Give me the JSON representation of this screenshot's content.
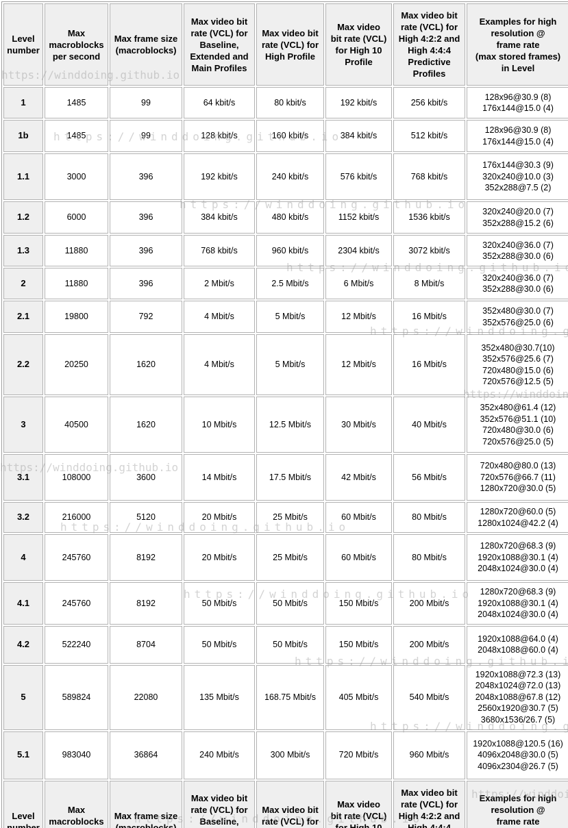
{
  "watermark": {
    "text": "https://winddoing.github.io",
    "color": "#d9d9d9"
  },
  "table": {
    "columns": [
      {
        "id": "level-number",
        "label": "Level\nnumber"
      },
      {
        "id": "max-macroblocks-per-second",
        "label": "Max\nmacroblocks\nper second"
      },
      {
        "id": "max-frame-size",
        "label": "Max frame size\n(macroblocks)"
      },
      {
        "id": "bitrate-baseline-extended-main",
        "label": "Max video bit\nrate (VCL) for\nBaseline,\nExtended and\nMain Profiles"
      },
      {
        "id": "bitrate-high",
        "label": "Max video bit\nrate (VCL) for\nHigh Profile"
      },
      {
        "id": "bitrate-high10",
        "label": "Max video\nbit rate (VCL)\nfor High 10\nProfile"
      },
      {
        "id": "bitrate-high422-444",
        "label": "Max video bit\nrate (VCL) for\nHigh 4:2:2 and\nHigh 4:4:4\nPredictive\nProfiles"
      },
      {
        "id": "examples",
        "label": "Examples for high\nresolution @\nframe rate\n(max stored frames)\nin Level"
      }
    ],
    "rows": [
      {
        "level": "1",
        "max_macroblocks_per_second": "1485",
        "max_frame_size": "99",
        "bitrate_baseline_extended_main": "64 kbit/s",
        "bitrate_high": "80 kbit/s",
        "bitrate_high10": "192 kbit/s",
        "bitrate_high422_444": "256 kbit/s",
        "examples": [
          "128x96@30.9 (8)",
          "176x144@15.0 (4)"
        ]
      },
      {
        "level": "1b",
        "max_macroblocks_per_second": "1485",
        "max_frame_size": "99",
        "bitrate_baseline_extended_main": "128 kbit/s",
        "bitrate_high": "160 kbit/s",
        "bitrate_high10": "384 kbit/s",
        "bitrate_high422_444": "512 kbit/s",
        "examples": [
          "128x96@30.9 (8)",
          "176x144@15.0 (4)"
        ]
      },
      {
        "level": "1.1",
        "max_macroblocks_per_second": "3000",
        "max_frame_size": "396",
        "bitrate_baseline_extended_main": "192 kbit/s",
        "bitrate_high": "240 kbit/s",
        "bitrate_high10": "576 kbit/s",
        "bitrate_high422_444": "768 kbit/s",
        "examples": [
          "176x144@30.3 (9)",
          "320x240@10.0 (3)",
          "352x288@7.5 (2)"
        ]
      },
      {
        "level": "1.2",
        "max_macroblocks_per_second": "6000",
        "max_frame_size": "396",
        "bitrate_baseline_extended_main": "384 kbit/s",
        "bitrate_high": "480 kbit/s",
        "bitrate_high10": "1152 kbit/s",
        "bitrate_high422_444": "1536 kbit/s",
        "examples": [
          "320x240@20.0 (7)",
          "352x288@15.2 (6)"
        ]
      },
      {
        "level": "1.3",
        "max_macroblocks_per_second": "11880",
        "max_frame_size": "396",
        "bitrate_baseline_extended_main": "768 kbit/s",
        "bitrate_high": "960 kbit/s",
        "bitrate_high10": "2304 kbit/s",
        "bitrate_high422_444": "3072 kbit/s",
        "examples": [
          "320x240@36.0 (7)",
          "352x288@30.0 (6)"
        ]
      },
      {
        "level": "2",
        "max_macroblocks_per_second": "11880",
        "max_frame_size": "396",
        "bitrate_baseline_extended_main": "2 Mbit/s",
        "bitrate_high": "2.5 Mbit/s",
        "bitrate_high10": "6 Mbit/s",
        "bitrate_high422_444": "8 Mbit/s",
        "examples": [
          "320x240@36.0 (7)",
          "352x288@30.0 (6)"
        ]
      },
      {
        "level": "2.1",
        "max_macroblocks_per_second": "19800",
        "max_frame_size": "792",
        "bitrate_baseline_extended_main": "4 Mbit/s",
        "bitrate_high": "5 Mbit/s",
        "bitrate_high10": "12 Mbit/s",
        "bitrate_high422_444": "16 Mbit/s",
        "examples": [
          "352x480@30.0 (7)",
          "352x576@25.0 (6)"
        ]
      },
      {
        "level": "2.2",
        "max_macroblocks_per_second": "20250",
        "max_frame_size": "1620",
        "bitrate_baseline_extended_main": "4 Mbit/s",
        "bitrate_high": "5 Mbit/s",
        "bitrate_high10": "12 Mbit/s",
        "bitrate_high422_444": "16 Mbit/s",
        "examples": [
          "352x480@30.7(10)",
          "352x576@25.6 (7)",
          "720x480@15.0 (6)",
          "720x576@12.5 (5)"
        ]
      },
      {
        "level": "3",
        "max_macroblocks_per_second": "40500",
        "max_frame_size": "1620",
        "bitrate_baseline_extended_main": "10 Mbit/s",
        "bitrate_high": "12.5 Mbit/s",
        "bitrate_high10": "30 Mbit/s",
        "bitrate_high422_444": "40 Mbit/s",
        "examples": [
          "352x480@61.4 (12)",
          "352x576@51.1 (10)",
          "720x480@30.0 (6)",
          "720x576@25.0 (5)"
        ]
      },
      {
        "level": "3.1",
        "max_macroblocks_per_second": "108000",
        "max_frame_size": "3600",
        "bitrate_baseline_extended_main": "14 Mbit/s",
        "bitrate_high": "17.5 Mbit/s",
        "bitrate_high10": "42 Mbit/s",
        "bitrate_high422_444": "56 Mbit/s",
        "examples": [
          "720x480@80.0 (13)",
          "720x576@66.7 (11)",
          "1280x720@30.0 (5)"
        ]
      },
      {
        "level": "3.2",
        "max_macroblocks_per_second": "216000",
        "max_frame_size": "5120",
        "bitrate_baseline_extended_main": "20 Mbit/s",
        "bitrate_high": "25 Mbit/s",
        "bitrate_high10": "60 Mbit/s",
        "bitrate_high422_444": "80 Mbit/s",
        "examples": [
          "1280x720@60.0 (5)",
          "1280x1024@42.2 (4)"
        ]
      },
      {
        "level": "4",
        "max_macroblocks_per_second": "245760",
        "max_frame_size": "8192",
        "bitrate_baseline_extended_main": "20 Mbit/s",
        "bitrate_high": "25 Mbit/s",
        "bitrate_high10": "60 Mbit/s",
        "bitrate_high422_444": "80 Mbit/s",
        "examples": [
          "1280x720@68.3 (9)",
          "1920x1088@30.1 (4)",
          "2048x1024@30.0 (4)"
        ]
      },
      {
        "level": "4.1",
        "max_macroblocks_per_second": "245760",
        "max_frame_size": "8192",
        "bitrate_baseline_extended_main": "50 Mbit/s",
        "bitrate_high": "50 Mbit/s",
        "bitrate_high10": "150 Mbit/s",
        "bitrate_high422_444": "200 Mbit/s",
        "examples": [
          "1280x720@68.3 (9)",
          "1920x1088@30.1 (4)",
          "2048x1024@30.0 (4)"
        ]
      },
      {
        "level": "4.2",
        "max_macroblocks_per_second": "522240",
        "max_frame_size": "8704",
        "bitrate_baseline_extended_main": "50 Mbit/s",
        "bitrate_high": "50 Mbit/s",
        "bitrate_high10": "150 Mbit/s",
        "bitrate_high422_444": "200 Mbit/s",
        "examples": [
          "1920x1088@64.0 (4)",
          "2048x1088@60.0 (4)"
        ]
      },
      {
        "level": "5",
        "max_macroblocks_per_second": "589824",
        "max_frame_size": "22080",
        "bitrate_baseline_extended_main": "135 Mbit/s",
        "bitrate_high": "168.75 Mbit/s",
        "bitrate_high10": "405 Mbit/s",
        "bitrate_high422_444": "540 Mbit/s",
        "examples": [
          "1920x1088@72.3 (13)",
          "2048x1024@72.0 (13)",
          "2048x1088@67.8 (12)",
          "2560x1920@30.7 (5)",
          "3680x1536/26.7 (5)"
        ]
      },
      {
        "level": "5.1",
        "max_macroblocks_per_second": "983040",
        "max_frame_size": "36864",
        "bitrate_baseline_extended_main": "240 Mbit/s",
        "bitrate_high": "300 Mbit/s",
        "bitrate_high10": "720 Mbit/s",
        "bitrate_high422_444": "960 Mbit/s",
        "examples": [
          "1920x1088@120.5 (16)",
          "4096x2048@30.0 (5)",
          "4096x2304@26.7 (5)"
        ]
      }
    ]
  }
}
